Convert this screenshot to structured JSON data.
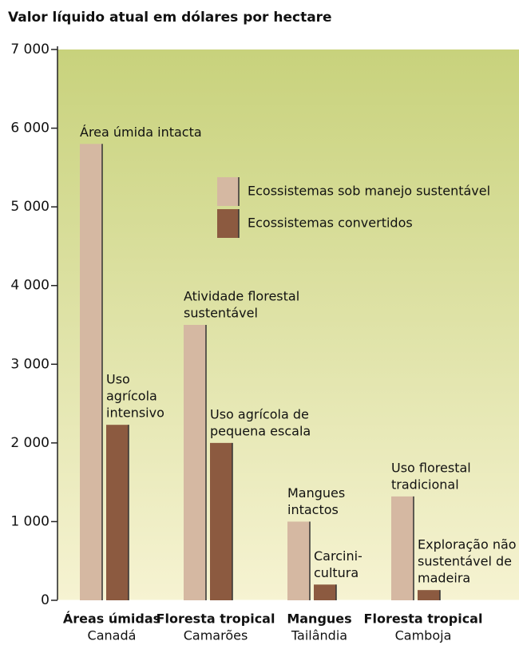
{
  "chart_data": {
    "type": "bar",
    "title": "Valor líquido atual em dólares por hectare",
    "categories": [
      {
        "name": "Áreas úmidas",
        "country": "Canadá"
      },
      {
        "name": "Floresta tropical",
        "country": "Camarões"
      },
      {
        "name": "Mangues",
        "country": "Tailândia"
      },
      {
        "name": "Floresta tropical",
        "country": "Camboja"
      }
    ],
    "series": [
      {
        "name": "Ecossistemas sob manejo sustentável",
        "color": "#d5b8a2",
        "values": [
          5800,
          3500,
          1000,
          1320
        ],
        "labels": [
          [
            "Área úmida intacta"
          ],
          [
            "Atividade florestal",
            "sustentável"
          ],
          [
            "Mangues",
            "intactos"
          ],
          [
            "Uso florestal",
            "tradicional"
          ]
        ]
      },
      {
        "name": "Ecossistemas convertidos",
        "color": "#8c5a40",
        "values": [
          2230,
          2000,
          200,
          130
        ],
        "labels": [
          [
            "Uso",
            "agrícola",
            "intensivo"
          ],
          [
            "Uso agrícola de",
            "pequena escala"
          ],
          [
            "Carcini-",
            "cultura"
          ],
          [
            "Exploração não",
            "sustentável de",
            "madeira"
          ]
        ]
      }
    ],
    "ylim": [
      0,
      7000
    ],
    "yticks": [
      0,
      {
        "value": 1000,
        "label": "1 000"
      },
      {
        "value": 2000,
        "label": "2 000"
      },
      {
        "value": 3000,
        "label": "3 000"
      },
      {
        "value": 4000,
        "label": "4 000"
      },
      {
        "value": 5000,
        "label": "5 000"
      },
      {
        "value": 6000,
        "label": "6 000"
      },
      {
        "value": 7000,
        "label": "7 000"
      }
    ],
    "legend": "top-right"
  }
}
